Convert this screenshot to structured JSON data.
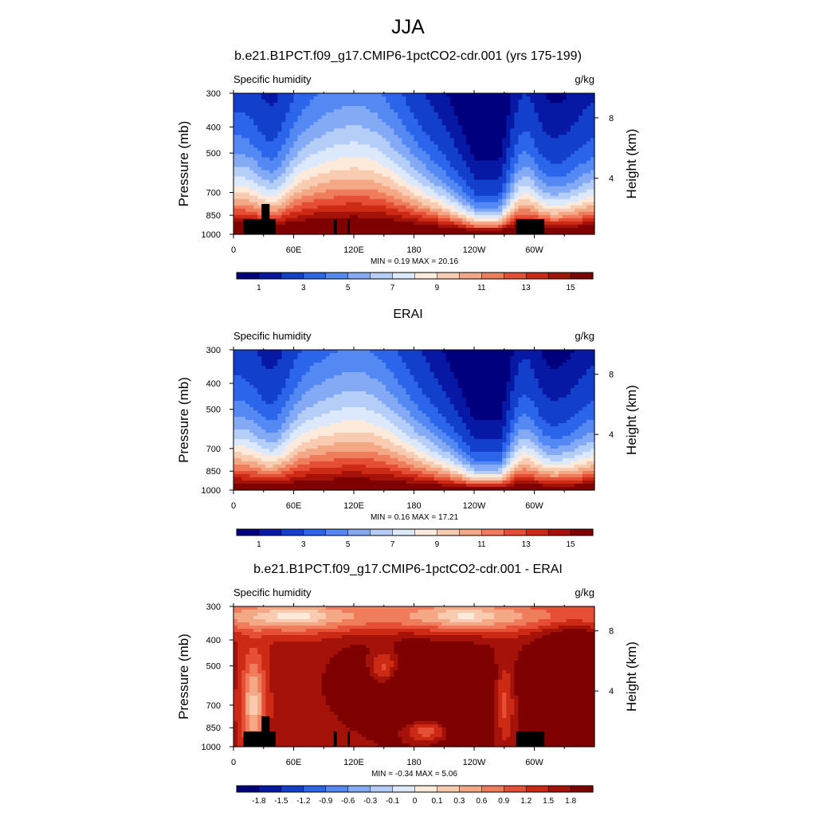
{
  "figure": {
    "title": "JJA"
  },
  "colors": {
    "full_palette": [
      "#00007f",
      "#0718a5",
      "#1240cc",
      "#2a65ea",
      "#5488f2",
      "#84aaf5",
      "#b5cef8",
      "#dce8fb",
      "#fdeadb",
      "#f9ccb2",
      "#f5a886",
      "#ef7d5c",
      "#e64f35",
      "#cc2a15",
      "#a5120a",
      "#7f0000"
    ],
    "diff_palette": [
      "#00007f",
      "#0718a5",
      "#1240cc",
      "#2a65ea",
      "#5488f2",
      "#84aaf5",
      "#b5cef8",
      "#dce8fb",
      "#fdeadb",
      "#f9ccb2",
      "#f5a886",
      "#ef7d5c",
      "#e64f35",
      "#cc2a15",
      "#a5120a",
      "#7f0000"
    ],
    "land_mask": "#000000"
  },
  "chart_data": [
    {
      "type": "heatmap",
      "id": "model",
      "title": "b.e21.B1PCT.f09_g17.CMIP6-1pctCO2-cdr.001 (yrs 175-199)",
      "left_label": "Specific humidity",
      "right_label": "g/kg",
      "ylabel": "Pressure (mb)",
      "ylabel_right": "Height (km)",
      "x_ticks": [
        "0",
        "60E",
        "120E",
        "180",
        "120W",
        "60W"
      ],
      "x_tick_values": [
        0,
        60,
        120,
        180,
        240,
        300
      ],
      "xlim": [
        0,
        360
      ],
      "y_ticks": [
        "300",
        "400",
        "500",
        "700",
        "850",
        "1000"
      ],
      "y_tick_values": [
        300,
        400,
        500,
        700,
        850,
        1000
      ],
      "ylim": [
        300,
        1000
      ],
      "y_scale": "log",
      "height_ticks": [
        "8",
        "4"
      ],
      "height_tick_pressures": [
        370,
        620
      ],
      "stats": "MIN =   0.19  MAX =  20.16",
      "colorbar_labels": [
        "1",
        "3",
        "5",
        "7",
        "9",
        "11",
        "13",
        "15"
      ],
      "colorbar_levels": [
        0.5,
        1,
        2,
        3,
        4,
        5,
        6,
        7,
        8,
        9,
        10,
        11,
        12,
        13,
        14,
        15
      ],
      "land_mask": true
    },
    {
      "type": "heatmap",
      "id": "obs",
      "title": "ERAI",
      "left_label": "Specific humidity",
      "right_label": "g/kg",
      "ylabel": "Pressure (mb)",
      "ylabel_right": "Height (km)",
      "x_ticks": [
        "0",
        "60E",
        "120E",
        "180",
        "120W",
        "60W"
      ],
      "x_tick_values": [
        0,
        60,
        120,
        180,
        240,
        300
      ],
      "xlim": [
        0,
        360
      ],
      "y_ticks": [
        "300",
        "400",
        "500",
        "700",
        "850",
        "1000"
      ],
      "y_tick_values": [
        300,
        400,
        500,
        700,
        850,
        1000
      ],
      "ylim": [
        300,
        1000
      ],
      "y_scale": "log",
      "height_ticks": [
        "8",
        "4"
      ],
      "height_tick_pressures": [
        370,
        620
      ],
      "stats": "MIN =   0.16  MAX =  17.21",
      "colorbar_labels": [
        "1",
        "3",
        "5",
        "7",
        "9",
        "11",
        "13",
        "15"
      ],
      "colorbar_levels": [
        0.5,
        1,
        2,
        3,
        4,
        5,
        6,
        7,
        8,
        9,
        10,
        11,
        12,
        13,
        14,
        15
      ],
      "land_mask": false
    },
    {
      "type": "heatmap",
      "id": "diff",
      "title": "b.e21.B1PCT.f09_g17.CMIP6-1pctCO2-cdr.001 - ERAI",
      "left_label": "Specific humidity",
      "right_label": "g/kg",
      "ylabel": "Pressure (mb)",
      "ylabel_right": "Height (km)",
      "x_ticks": [
        "0",
        "60E",
        "120E",
        "180",
        "120W",
        "60W"
      ],
      "x_tick_values": [
        0,
        60,
        120,
        180,
        240,
        300
      ],
      "xlim": [
        0,
        360
      ],
      "y_ticks": [
        "300",
        "400",
        "500",
        "700",
        "850",
        "1000"
      ],
      "y_tick_values": [
        300,
        400,
        500,
        700,
        850,
        1000
      ],
      "ylim": [
        300,
        1000
      ],
      "y_scale": "log",
      "height_ticks": [
        "8",
        "4"
      ],
      "height_tick_pressures": [
        370,
        620
      ],
      "stats": "MIN =  -0.34  MAX =   5.06",
      "colorbar_labels": [
        "-1.8",
        "-1.5",
        "-1.2",
        "-0.9",
        "-0.6",
        "-0.3",
        "-0.1",
        "0",
        "0.1",
        "0.3",
        "0.6",
        "0.9",
        "1.2",
        "1.5",
        "1.8"
      ],
      "colorbar_levels": [
        -1.8,
        -1.5,
        -1.2,
        -0.9,
        -0.6,
        -0.3,
        -0.1,
        0,
        0.1,
        0.3,
        0.6,
        0.9,
        1.2,
        1.5,
        1.8
      ],
      "land_mask": true
    }
  ]
}
